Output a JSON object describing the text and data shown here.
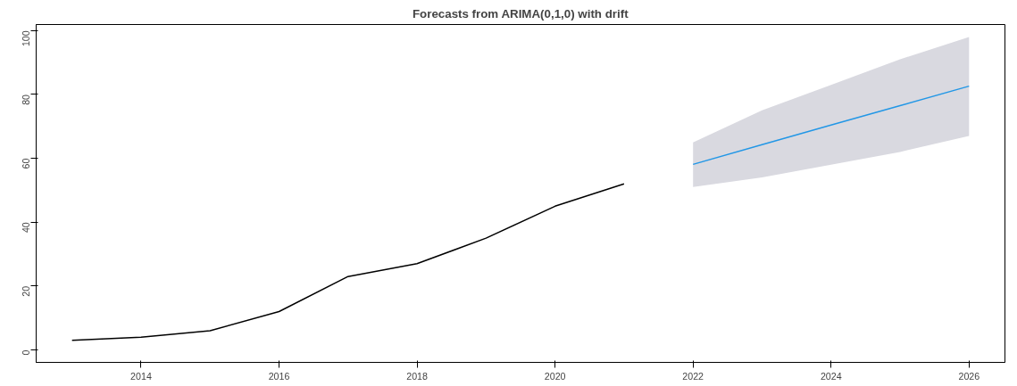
{
  "chart_data": {
    "type": "line",
    "title": "Forecasts from ARIMA(0,1,0) with drift",
    "series": [
      {
        "color": "#000000",
        "x": [
          2013,
          2014,
          2015,
          2016,
          2017,
          2018,
          2019,
          2020,
          2021
        ],
        "values": [
          3,
          4,
          6,
          12,
          23,
          27,
          35,
          45,
          52
        ]
      },
      {
        "color": "#2297e6",
        "x": [
          2022,
          2023,
          2024,
          2025,
          2026
        ],
        "values": [
          58.1,
          64.3,
          70.4,
          76.5,
          82.6
        ],
        "lower": [
          51,
          54,
          58,
          62,
          67
        ],
        "upper": [
          65,
          75,
          83,
          91,
          98
        ]
      }
    ],
    "xlim": [
      2012.48,
      2026.52
    ],
    "ylim": [
      -3.9,
      101.9
    ],
    "xticks": [
      2014,
      2016,
      2018,
      2020,
      2022,
      2024,
      2026
    ],
    "yticks": [
      0,
      20,
      40,
      60,
      80,
      100
    ],
    "grid": false
  }
}
